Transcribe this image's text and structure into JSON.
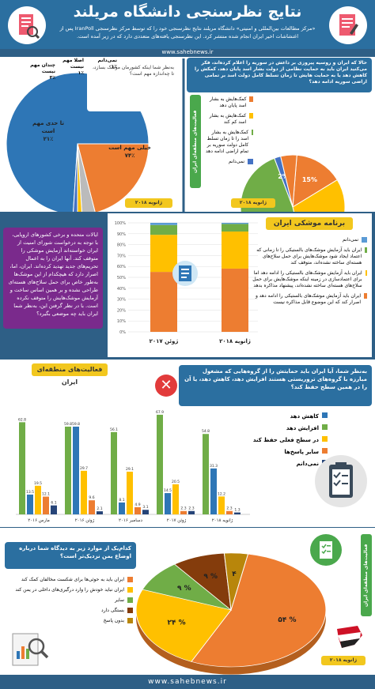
{
  "header": {
    "title": "نتایج نظرسنجی دانشگاه مریلند",
    "intro": "«مرکز مطالعات بین‌المللی و امنیتی» دانشگاه مریلند نتایج نظرسنجی خود را که توسط مرکز نظرسنجی IranPoll پس از اغتشاشات اخیر ایران انجام شده منتشر کرد. این نظرسنجی یافته‌های متعددی دارد که در زیر آمده است.",
    "site": "www.sahebnews.ir"
  },
  "pie_importance": {
    "question": "به‌نظر شما اینکه کشورمان موشک بسازد، تا چه‌اندازه مهم است؟",
    "date": "ژانویه ۲۰۱۸",
    "slices": [
      {
        "label": "خیلی مهم است",
        "pct": "۷۴٪",
        "value": 74,
        "color": "#2e76b6"
      },
      {
        "label": "تا حدی مهم است",
        "pct": "۲۱٪",
        "value": 21,
        "color": "#ed7d31"
      },
      {
        "label": "چندان مهم نیست",
        "pct": "۳٪",
        "value": 3,
        "color": "#bbbbbb"
      },
      {
        "label": "اصلا مهم نیست",
        "pct": "۱٪",
        "value": 1,
        "color": "#ffc000"
      },
      {
        "label": "نمی‌دانم",
        "pct": "۱٪",
        "value": 1,
        "color": "#4472c4"
      }
    ]
  },
  "syria": {
    "question": "حالا که ایران و روسیه پیروزی بر داعش در سوریه را اعلام کرده‌اند، فکر می‌کنید ایران باید به حمایت نظامی از دولت بشار اسد پایان دهد، کمکش را کاهش دهد یا به حمایت هایش تا زمان تسلط کامل دولت اسد بر تمامی اراضی سوریه ادامه دهد؟",
    "side_label": "فعالیت‌های منطقه‌ای ایران",
    "date": "ژانویه ۲۰۱۸",
    "legend": [
      {
        "label": "کمک‌هایش به بشار اسد پایان دهد",
        "color": "#ed7d31"
      },
      {
        "label": "کمک‌هایش به بشار اسد کم کند",
        "color": "#ffc000"
      },
      {
        "label": "کمک‌هایش به بشار اسد را تا زمان تسلط کامل دولت سوریه بر تمام اراضی ادامه دهد",
        "color": "#70ad47"
      },
      {
        "label": "نمی‌دانم",
        "color": "#4472c4"
      }
    ],
    "slices": [
      {
        "pct": "15%",
        "value": 15,
        "color": "#ed7d31"
      },
      {
        "pct": "30%",
        "value": 30,
        "color": "#ffc000"
      },
      {
        "pct": "48%",
        "value": 48,
        "color": "#70ad47"
      },
      {
        "pct": "2%",
        "value": 2,
        "color": "#4472c4"
      },
      {
        "pct": "",
        "value": 5,
        "color": "#ed7d31"
      }
    ]
  },
  "missile": {
    "title": "برنامه موشکی ایران",
    "question": "ایالات متحده و برخی کشورهای اروپایی، با توجه به درخواست شورای امنیت از ایران خواسته‌اند آزمایش موشکی را متوقف کند. آنها ایران را به اعمال تحریم‌های جدید تهدید کرده‌اند. ایران، اما، اصرار دارد که هیچکدام از این موشک‌ها به‌طور خاص برای حمل سلاح‌های هسته‌ای طراحی نشده و بر همین اساس ساخت و آزمایش موشک‌هایش را متوقف نکرده است. با در نظر گرفتن این، به‌نظر شما ایران باید چه موضعی بگیرد؟",
    "legend": [
      {
        "label": "نمی‌دانم",
        "color": "#5b9bd5"
      },
      {
        "label": "ایران باید آزمایش موشک‌های بالستیکی را تا زمانی که اعتماد ایجاد شود موشک‌هایش برای حمل سلاح‌های هسته‌ای ساخته نشده‌اند، متوقف کند",
        "color": "#70ad47"
      },
      {
        "label": "ایران باید آزمایش موشک‌های بالستیکی را ادامه دهد اما برای اعتمادسازی در زمینه اینکه موشک‌هایش برای حمل سلاح‌های هسته‌ای ساخته نشده‌اند، پیشنهاد مذاکره بدهد",
        "color": "#ffc000"
      },
      {
        "label": "ایران باید آزمایش موشک‌های بالستیکی را ادامه دهد و اصرار کند که این موضوع قابل مذاکره نیست",
        "color": "#ed7d31"
      }
    ],
    "yticks": [
      "0%",
      "10%",
      "20%",
      "30%",
      "40%",
      "50%",
      "60%",
      "70%",
      "80%",
      "90%",
      "100%"
    ],
    "categories": [
      "ژوئن ۲۰۱۷",
      "ژانویه ۲۰۱۸"
    ]
  },
  "regional": {
    "title": "فعالیت‌های منطقه‌ای ایران",
    "question": "به‌نظر شما، آیا ایران باید حمایتش را از گروه‌هایی که مشغول مبارزه با گروه‌های تروریستی هستند افزایش دهد، کاهش دهد، یا آن را در همین سطح حفظ کند؟",
    "legend": [
      {
        "label": "کاهش دهد",
        "color": "#2e76b6"
      },
      {
        "label": "افزایش دهد",
        "color": "#70ad47"
      },
      {
        "label": "در سطح فعلی حفظ کند",
        "color": "#ffc000"
      },
      {
        "label": "سایر پاسخ‌ها",
        "color": "#ed7d31"
      },
      {
        "label": "نمی‌دانم",
        "color": "#264478"
      }
    ]
  },
  "yemen": {
    "question": "کدام‌یک از موارد زیر به دیدگاه شما درباره اوضاع یمن نزدیک‌تر است؟",
    "side_label": "فعالیت‌های منطقه‌ای ایران",
    "date": "ژانویه ۲۰۱۸",
    "legend": [
      {
        "label": "ایران باید به حوثی‌ها برای شکست مخالفان کمک کند",
        "color": "#ed7d31"
      },
      {
        "label": "ایران نباید خودش را وارد درگیری‌های داخلی در یمن کند",
        "color": "#ffc000"
      },
      {
        "label": "سایر",
        "color": "#70ad47"
      },
      {
        "label": "بستگی دارد",
        "color": "#843c0c"
      },
      {
        "label": "بدون پاسخ",
        "color": "#b8860b"
      }
    ],
    "slices": [
      {
        "pct": "۵۴ %",
        "value": 54,
        "color": "#ed7d31"
      },
      {
        "pct": "۲۴ %",
        "value": 24,
        "color": "#ffc000"
      },
      {
        "pct": "۹ %",
        "value": 9,
        "color": "#70ad47"
      },
      {
        "pct": "۹ %",
        "value": 9,
        "color": "#843c0c"
      },
      {
        "pct": "۴",
        "value": 4,
        "color": "#b8860b"
      }
    ]
  },
  "chart_data": [
    {
      "type": "bar",
      "title": "برنامه موشکی ایران",
      "categories": [
        "ژوئن ۲۰۱۷",
        "ژانویه ۲۰۱۸"
      ],
      "stacked": true,
      "ylim": [
        0,
        100
      ],
      "series": [
        {
          "name": "ایران باید آزمایش موشک‌های بالستیکی را ادامه دهد و اصرار کند که این موضوع قابل مذاکره نیست",
          "values": [
            55,
            58
          ]
        },
        {
          "name": "ایران باید آزمایش موشک‌های بالستیکی را ادامه دهد اما برای اعتمادسازی در زمینه اینکه موشک‌هایش برای حمل سلاح‌های هسته‌ای ساخته نشده‌اند، پیشنهاد مذاکره بدهد",
          "values": [
            34,
            34
          ]
        },
        {
          "name": "ایران باید آزمایش موشک‌های بالستیکی را تا زمانی که اعتماد ایجاد شود موشک‌هایش برای حمل سلاح‌های هسته‌ای ساخته نشده‌اند، متوقف کند",
          "values": [
            9,
            7
          ]
        },
        {
          "name": "نمی‌دانم",
          "values": [
            2,
            1
          ]
        }
      ]
    },
    {
      "type": "bar",
      "title": "فعالیت‌های منطقه‌ای ایران",
      "categories": [
        "مارس ۲۰۱۶",
        "ژوئن ۲۰۱۶",
        "دسامبر ۲۰۱۶",
        "ژوئن ۲۰۱۷",
        "ژانویه ۲۰۱۸"
      ],
      "ylim": [
        0,
        70
      ],
      "series": [
        {
          "name": "افزایش دهد",
          "values": [
            62.8,
            59.8,
            56.1,
            67.9,
            54.8
          ]
        },
        {
          "name": "کاهش دهد",
          "values": [
            13.5,
            59.8,
            8.1,
            14.5,
            31.3
          ]
        },
        {
          "name": "در سطح فعلی حفظ کند",
          "values": [
            19.5,
            29.7,
            29.1,
            20.5,
            12.2
          ]
        },
        {
          "name": "سایر پاسخ‌ها",
          "values": [
            12.1,
            9.6,
            4.9,
            2.3,
            2.3
          ]
        },
        {
          "name": "نمی‌دانم",
          "values": [
            6.1,
            2.1,
            3.1,
            2.3,
            1.3
          ]
        }
      ]
    }
  ]
}
